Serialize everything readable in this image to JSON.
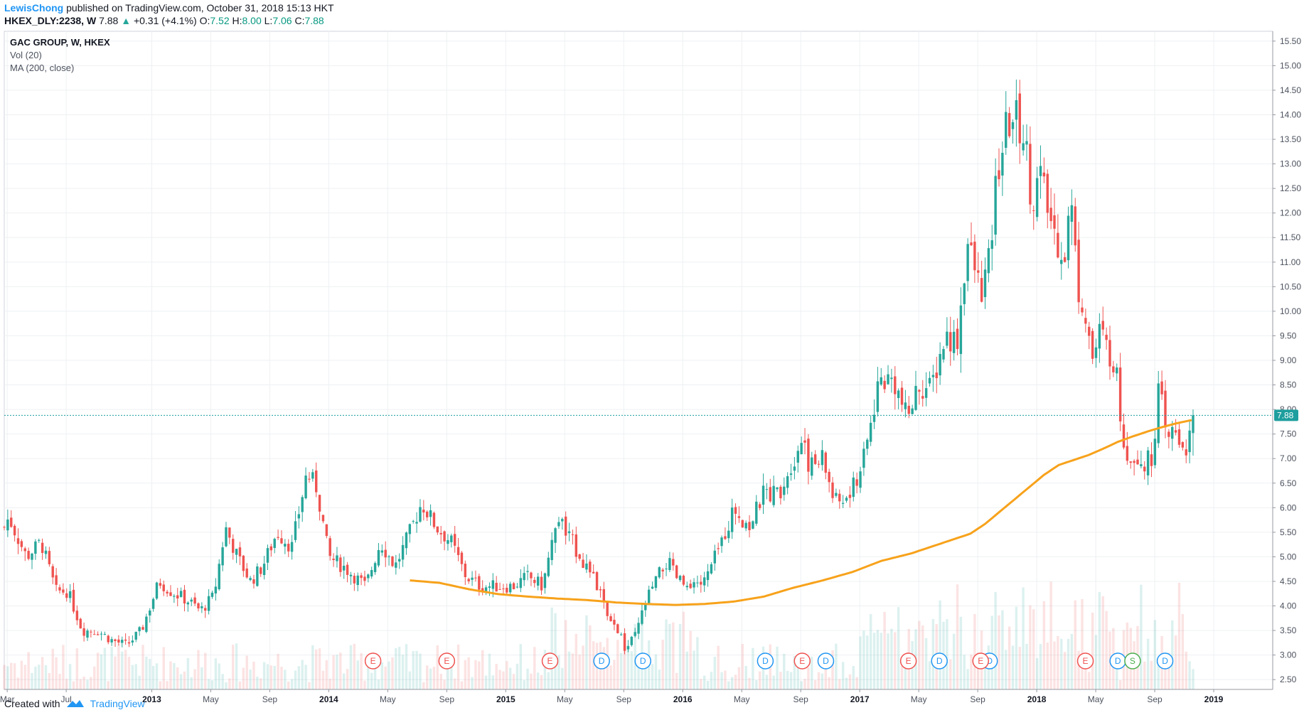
{
  "header": {
    "author": "LewisChong",
    "published_text": "published on TradingView.com, October 31, 2018 15:13 HKT",
    "symbol": "HKEX_DLY:2238, W",
    "last": "7.88",
    "change": "+0.31 (+4.1%)",
    "open_label": "O:",
    "open": "7.52",
    "high_label": "H:",
    "high": "8.00",
    "low_label": "L:",
    "low": "7.06",
    "close_label": "C:",
    "close": "7.88"
  },
  "legend": {
    "title": "GAC GROUP, W, HKEX",
    "volume": "Vol (20)",
    "ma": "MA (200, close)"
  },
  "footer": {
    "created_with": "Created with",
    "brand": "TradingView"
  },
  "colors": {
    "up": "#26a69a",
    "down": "#ef5350",
    "ma": "#f7a21b",
    "price_line": "#1e9e9e",
    "marker_e": "#ef5350",
    "marker_d": "#2196f3",
    "marker_s": "#4caf50"
  },
  "chart_data": {
    "type": "candlestick",
    "title": "GAC GROUP, W, HKEX",
    "ylim": [
      2.3,
      15.7
    ],
    "y_ticks": [
      "15.50",
      "15.00",
      "14.50",
      "14.00",
      "13.50",
      "13.00",
      "12.50",
      "12.00",
      "11.50",
      "11.00",
      "10.50",
      "10.00",
      "9.50",
      "9.00",
      "8.50",
      "8.00",
      "7.50",
      "7.00",
      "6.50",
      "6.00",
      "5.50",
      "5.00",
      "4.50",
      "4.00",
      "3.50",
      "3.00",
      "2.50"
    ],
    "x_ticks": [
      {
        "label": "Mar",
        "t": 0.2,
        "bold": false
      },
      {
        "label": "Jul",
        "t": 4.2,
        "bold": false
      },
      {
        "label": "2013",
        "t": 10.0,
        "bold": true
      },
      {
        "label": "May",
        "t": 14.0,
        "bold": false
      },
      {
        "label": "Sep",
        "t": 18.0,
        "bold": false
      },
      {
        "label": "2014",
        "t": 22.0,
        "bold": true
      },
      {
        "label": "May",
        "t": 26.0,
        "bold": false
      },
      {
        "label": "Sep",
        "t": 30.0,
        "bold": false
      },
      {
        "label": "2015",
        "t": 34.0,
        "bold": true
      },
      {
        "label": "May",
        "t": 38.0,
        "bold": false
      },
      {
        "label": "Sep",
        "t": 42.0,
        "bold": false
      },
      {
        "label": "2016",
        "t": 46.0,
        "bold": true
      },
      {
        "label": "May",
        "t": 50.0,
        "bold": false
      },
      {
        "label": "Sep",
        "t": 54.0,
        "bold": false
      },
      {
        "label": "2017",
        "t": 58.0,
        "bold": true
      },
      {
        "label": "May",
        "t": 62.0,
        "bold": false
      },
      {
        "label": "Sep",
        "t": 66.0,
        "bold": false
      },
      {
        "label": "2018",
        "t": 70.0,
        "bold": true
      },
      {
        "label": "May",
        "t": 74.0,
        "bold": false
      },
      {
        "label": "Sep",
        "t": 78.0,
        "bold": false
      },
      {
        "label": "2019",
        "t": 82.0,
        "bold": true
      }
    ],
    "last_price": "7.88",
    "anchors": [
      [
        0.0,
        5.6
      ],
      [
        0.3,
        5.8
      ],
      [
        1.5,
        5.0
      ],
      [
        2.5,
        5.3
      ],
      [
        3.5,
        4.3
      ],
      [
        4.3,
        4.3
      ],
      [
        5.3,
        3.5
      ],
      [
        6.3,
        3.5
      ],
      [
        7.3,
        3.3
      ],
      [
        8.3,
        3.2
      ],
      [
        9.3,
        3.5
      ],
      [
        10.5,
        4.5
      ],
      [
        11.3,
        4.3
      ],
      [
        12.5,
        4.1
      ],
      [
        13.3,
        3.9
      ],
      [
        14.2,
        4.2
      ],
      [
        15.0,
        5.6
      ],
      [
        15.8,
        5.0
      ],
      [
        16.7,
        4.5
      ],
      [
        17.5,
        4.8
      ],
      [
        18.5,
        5.5
      ],
      [
        19.5,
        5.2
      ],
      [
        20.5,
        6.7
      ],
      [
        21.2,
        6.4
      ],
      [
        22.0,
        5.0
      ],
      [
        23.0,
        4.8
      ],
      [
        24.5,
        4.4
      ],
      [
        25.5,
        5.3
      ],
      [
        26.5,
        4.8
      ],
      [
        27.5,
        5.5
      ],
      [
        28.3,
        6.1
      ],
      [
        29.3,
        5.6
      ],
      [
        30.3,
        5.3
      ],
      [
        31.3,
        4.6
      ],
      [
        32.3,
        4.4
      ],
      [
        33.5,
        4.4
      ],
      [
        34.5,
        4.4
      ],
      [
        35.5,
        4.6
      ],
      [
        36.5,
        4.4
      ],
      [
        37.5,
        5.8
      ],
      [
        38.5,
        5.3
      ],
      [
        39.5,
        4.8
      ],
      [
        40.5,
        4.2
      ],
      [
        41.0,
        3.6
      ],
      [
        41.5,
        3.6
      ],
      [
        42.1,
        3.1
      ],
      [
        42.8,
        3.4
      ],
      [
        43.5,
        4.1
      ],
      [
        44.5,
        4.7
      ],
      [
        45.0,
        4.9
      ],
      [
        45.5,
        4.6
      ],
      [
        46.5,
        4.3
      ],
      [
        47.5,
        4.5
      ],
      [
        48.5,
        5.2
      ],
      [
        49.5,
        6.0
      ],
      [
        50.5,
        5.6
      ],
      [
        51.5,
        6.3
      ],
      [
        52.5,
        6.3
      ],
      [
        53.5,
        7.0
      ],
      [
        54.2,
        7.5
      ],
      [
        54.6,
        6.8
      ],
      [
        55.5,
        7.0
      ],
      [
        56.3,
        6.1
      ],
      [
        57.3,
        6.2
      ],
      [
        58.3,
        7.0
      ],
      [
        59.3,
        8.6
      ],
      [
        60.3,
        8.6
      ],
      [
        61.2,
        7.8
      ],
      [
        62.0,
        8.5
      ],
      [
        62.8,
        8.4
      ],
      [
        63.8,
        9.5
      ],
      [
        64.6,
        9.4
      ],
      [
        65.3,
        11.4
      ],
      [
        66.2,
        10.4
      ],
      [
        66.8,
        11.0
      ],
      [
        67.3,
        12.8
      ],
      [
        68.0,
        13.8
      ],
      [
        68.5,
        14.0
      ],
      [
        69.2,
        13.5
      ],
      [
        69.7,
        12.2
      ],
      [
        70.2,
        12.8
      ],
      [
        70.8,
        12.0
      ],
      [
        71.3,
        11.5
      ],
      [
        71.9,
        11.2
      ],
      [
        72.3,
        12.3
      ],
      [
        72.8,
        10.5
      ],
      [
        73.3,
        10.0
      ],
      [
        73.8,
        9.0
      ],
      [
        74.3,
        9.6
      ],
      [
        74.8,
        9.2
      ],
      [
        75.3,
        9.0
      ],
      [
        75.8,
        7.5
      ],
      [
        76.3,
        7.0
      ],
      [
        76.8,
        7.1
      ],
      [
        77.3,
        6.9
      ],
      [
        77.8,
        7.0
      ],
      [
        78.3,
        8.5
      ],
      [
        78.8,
        7.3
      ],
      [
        79.3,
        7.6
      ],
      [
        79.8,
        7.3
      ],
      [
        80.3,
        7.2
      ],
      [
        80.6,
        7.88
      ]
    ],
    "ma_anchors": [
      [
        27.5,
        5.05
      ],
      [
        29.5,
        5.0
      ],
      [
        31.5,
        4.87
      ],
      [
        33.5,
        4.77
      ],
      [
        35.5,
        4.72
      ],
      [
        37.5,
        4.68
      ],
      [
        39.5,
        4.65
      ],
      [
        41.5,
        4.6
      ],
      [
        43.5,
        4.57
      ],
      [
        45.5,
        4.55
      ],
      [
        47.5,
        4.57
      ],
      [
        49.5,
        4.62
      ],
      [
        51.5,
        4.72
      ],
      [
        53.5,
        4.9
      ],
      [
        55.5,
        5.05
      ],
      [
        57.5,
        5.22
      ],
      [
        59.5,
        5.45
      ],
      [
        61.5,
        5.6
      ],
      [
        63.5,
        5.8
      ],
      [
        65.5,
        6.0
      ],
      [
        66.5,
        6.2
      ],
      [
        67.5,
        6.45
      ],
      [
        68.5,
        6.7
      ],
      [
        69.5,
        6.95
      ],
      [
        70.5,
        7.2
      ],
      [
        71.5,
        7.4
      ],
      [
        72.5,
        7.5
      ],
      [
        73.5,
        7.6
      ],
      [
        74.5,
        7.73
      ],
      [
        75.5,
        7.87
      ],
      [
        76.5,
        7.98
      ],
      [
        77.5,
        8.08
      ],
      [
        78.5,
        8.17
      ],
      [
        79.5,
        8.25
      ],
      [
        80.6,
        8.32
      ]
    ],
    "ma_levels": "MA values in price units along the weekly axis (index t = weeks/…)",
    "volume_note": "",
    "events": [
      {
        "label": "E",
        "t": 25.0,
        "kind": "earnings"
      },
      {
        "label": "E",
        "t": 30.0,
        "kind": "earnings"
      },
      {
        "label": "E",
        "t": 37.0,
        "kind": "earnings"
      },
      {
        "label": "D",
        "t": 40.5,
        "kind": "dividend"
      },
      {
        "label": "D",
        "t": 43.3,
        "kind": "dividend"
      },
      {
        "label": "D",
        "t": 51.6,
        "kind": "dividend"
      },
      {
        "label": "E",
        "t": 54.1,
        "kind": "earnings"
      },
      {
        "label": "D",
        "t": 55.7,
        "kind": "dividend"
      },
      {
        "label": "E",
        "t": 61.3,
        "kind": "earnings"
      },
      {
        "label": "D",
        "t": 63.4,
        "kind": "dividend"
      },
      {
        "label": "D",
        "t": 66.8,
        "kind": "dividend"
      },
      {
        "label": "E",
        "t": 66.2,
        "kind": "earnings"
      },
      {
        "label": "E",
        "t": 73.3,
        "kind": "earnings"
      },
      {
        "label": "D",
        "t": 75.5,
        "kind": "dividend"
      },
      {
        "label": "S",
        "t": 76.5,
        "kind": "split"
      },
      {
        "label": "D",
        "t": 78.7,
        "kind": "dividend"
      }
    ]
  }
}
